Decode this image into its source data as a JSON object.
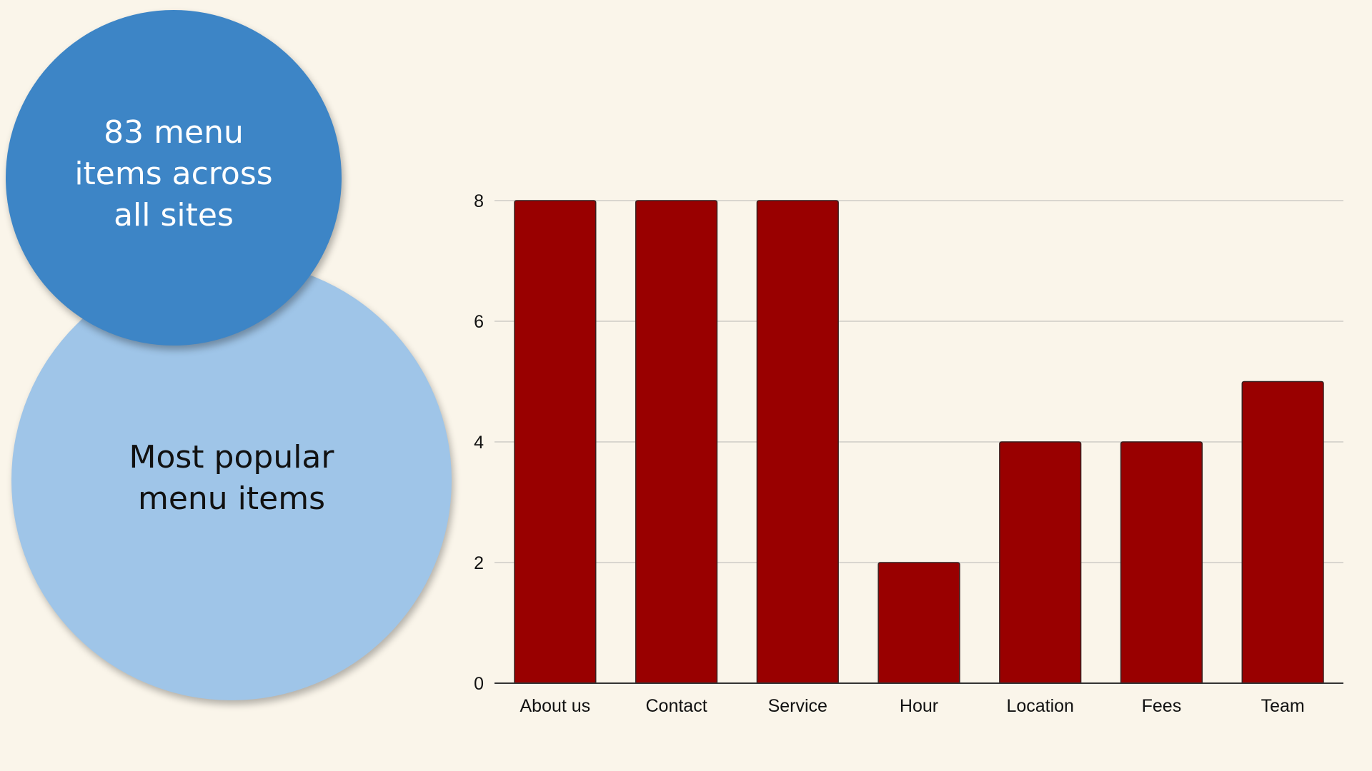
{
  "colors": {
    "background": "#faf5ea",
    "circle_top": "#3d85c6",
    "circle_bottom": "#9fc5e8",
    "bar_fill": "#990000",
    "bar_stroke": "#3a2020",
    "gridline": "#d9d6cf",
    "axis": "#333333"
  },
  "circles": {
    "top": {
      "text": "83 menu\nitems across\nall sites"
    },
    "bottom": {
      "text": "Most popular\nmenu items"
    }
  },
  "chart_data": {
    "type": "bar",
    "categories": [
      "About us",
      "Contact",
      "Service",
      "Hour",
      "Location",
      "Fees",
      "Team"
    ],
    "values": [
      8,
      8,
      8,
      2,
      4,
      4,
      5
    ],
    "ylim": [
      0,
      8
    ],
    "yticks": [
      0,
      2,
      4,
      6,
      8
    ],
    "grid": true,
    "legend": "none",
    "title": "",
    "xlabel": "",
    "ylabel": ""
  }
}
